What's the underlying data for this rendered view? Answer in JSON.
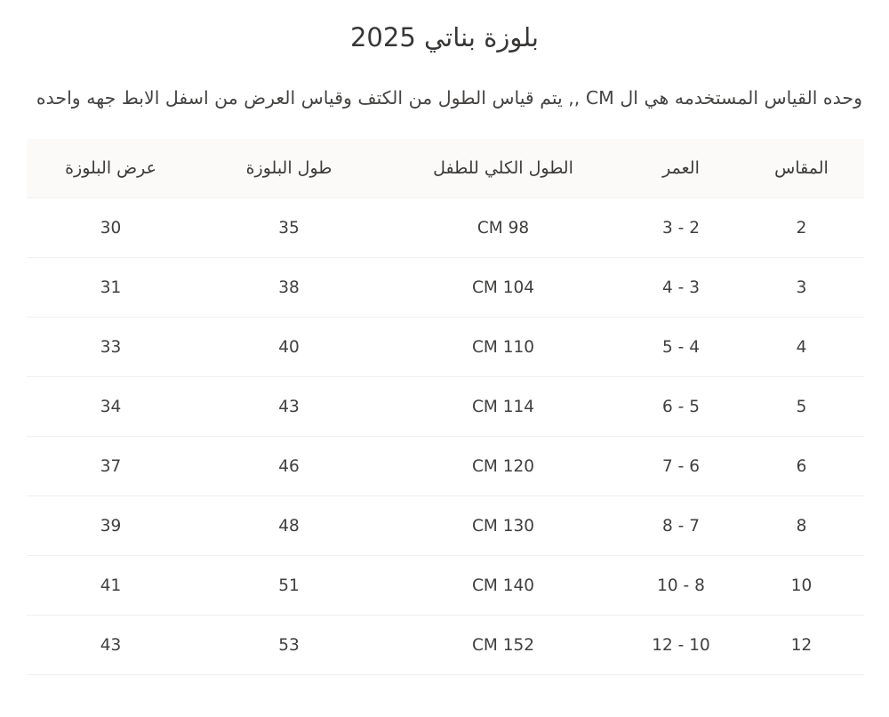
{
  "page": {
    "title": "بلوزة بناتي 2025",
    "description": "وحده القياس المستخدمه هي ال CM ,, يتم قياس الطول من الكتف وقياس العرض من اسفل الابط جهه واحده"
  },
  "table": {
    "columns": [
      {
        "key": "size",
        "label": "المقاس"
      },
      {
        "key": "age",
        "label": "العمر"
      },
      {
        "key": "child-height",
        "label": "الطول الكلي للطفل"
      },
      {
        "key": "blouse-length",
        "label": "طول البلوزة"
      },
      {
        "key": "blouse-width",
        "label": "عرض البلوزة"
      }
    ],
    "rows": [
      {
        "size": "2",
        "age": "2 - 3",
        "child_height": "98 CM",
        "blouse_length": "35",
        "blouse_width": "30"
      },
      {
        "size": "3",
        "age": "3 - 4",
        "child_height": "104 CM",
        "blouse_length": "38",
        "blouse_width": "31"
      },
      {
        "size": "4",
        "age": "4 - 5",
        "child_height": "110 CM",
        "blouse_length": "40",
        "blouse_width": "33"
      },
      {
        "size": "5",
        "age": "5 - 6",
        "child_height": "114 CM",
        "blouse_length": "43",
        "blouse_width": "34"
      },
      {
        "size": "6",
        "age": "6 - 7",
        "child_height": "120 CM",
        "blouse_length": "46",
        "blouse_width": "37"
      },
      {
        "size": "8",
        "age": "7 - 8",
        "child_height": "130 CM",
        "blouse_length": "48",
        "blouse_width": "39"
      },
      {
        "size": "10",
        "age": "8 - 10",
        "child_height": "140 CM",
        "blouse_length": "51",
        "blouse_width": "41"
      },
      {
        "size": "12",
        "age": "10 - 12",
        "child_height": "152 CM",
        "blouse_length": "53",
        "blouse_width": "43"
      }
    ]
  },
  "colors": {
    "text_primary": "#3f3e3d",
    "header_background": "#fbfaf9",
    "row_separator": "#f2f0ee",
    "page_background": "#ffffff"
  }
}
